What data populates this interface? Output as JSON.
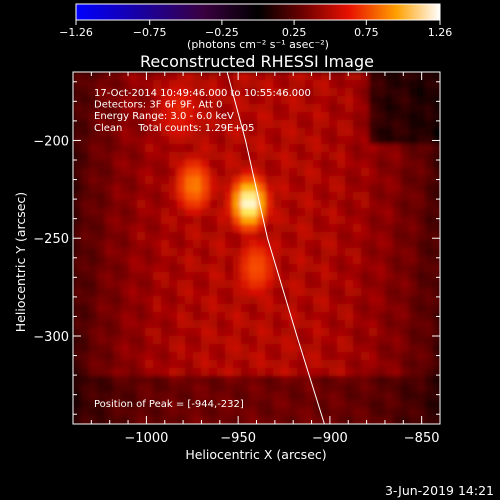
{
  "chart_data": {
    "type": "heatmap",
    "title": "Reconstructed RHESSI Image",
    "xlabel": "Heliocentric X (arcsec)",
    "ylabel": "Heliocentric Y (arcsec)",
    "xlim": [
      -1040,
      -840
    ],
    "ylim": [
      -345,
      -165
    ],
    "xticks": [
      -1000,
      -950,
      -900,
      -850
    ],
    "xtick_labels": [
      "−1000",
      "−950",
      "−900",
      "−850"
    ],
    "yticks": [
      -200,
      -250,
      -300
    ],
    "ytick_labels": [
      "−200",
      "−250",
      "−300"
    ],
    "colorbar": {
      "range": [
        -1.26,
        1.26
      ],
      "ticks": [
        -1.26,
        -0.75,
        -0.25,
        0.25,
        0.75,
        1.26
      ],
      "tick_labels": [
        "−1.26",
        "−0.75",
        "−0.25",
        "0.25",
        "0.75",
        "1.26"
      ],
      "units_label": "(photons cm⁻² s⁻¹ asec⁻²)",
      "colormap": "rhessi-color-table-3"
    },
    "annotations": [
      "17-Oct-2014 10:49:46.000 to 10:55:46.000",
      "Detectors: 3F 6F 9F, Att 0",
      "Energy Range: 3.0 - 6.0 keV",
      "Clean     Total counts: 1.29E+05"
    ],
    "peak_label": "Position of Peak = [-944,-232]",
    "sources": [
      {
        "x": -944,
        "y": -232,
        "peak": 1.26
      },
      {
        "x": -974,
        "y": -223,
        "peak": 0.95
      },
      {
        "x": -940,
        "y": -265,
        "peak": 0.85
      },
      {
        "x": -982,
        "y": -185,
        "peak": 0.7
      }
    ],
    "background_level": 0.42,
    "limb_curve": [
      [
        -956,
        -165
      ],
      [
        -946,
        -200
      ],
      [
        -934,
        -250
      ],
      [
        -918,
        -300
      ],
      [
        -903,
        -345
      ]
    ]
  },
  "footer_date": "3-Jun-2019 14:21"
}
